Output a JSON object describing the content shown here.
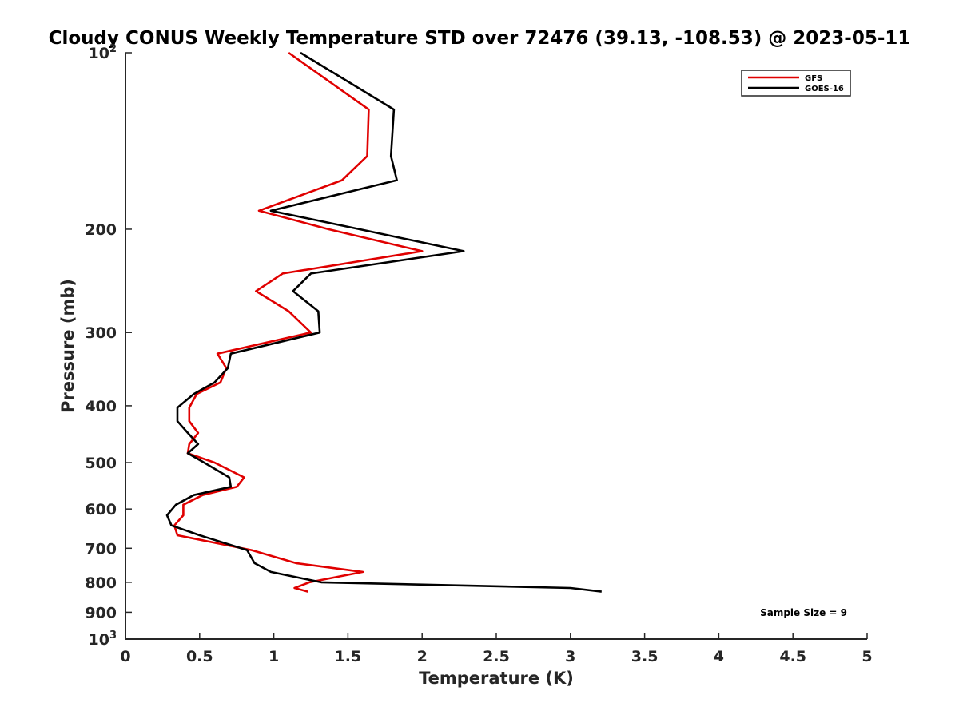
{
  "chart_data": {
    "type": "line",
    "title": "Cloudy CONUS Weekly Temperature STD over 72476 (39.13, -108.53) @ 2023-05-11",
    "xlabel": "Temperature (K)",
    "ylabel": "Pressure (mb)",
    "xlim": [
      0,
      5
    ],
    "ylim": [
      100,
      1000
    ],
    "yscale": "log",
    "y_reversed": true,
    "x_ticks": [
      0,
      0.5,
      1,
      1.5,
      2,
      2.5,
      3,
      3.5,
      4,
      4.5,
      5
    ],
    "x_tick_labels": [
      "0",
      "0.5",
      "1",
      "1.5",
      "2",
      "2.5",
      "3",
      "3.5",
      "4",
      "4.5",
      "5"
    ],
    "y_ticks": [
      {
        "value": 100,
        "base": "10",
        "exp": "2"
      },
      {
        "value": 200,
        "label": "200"
      },
      {
        "value": 300,
        "label": "300"
      },
      {
        "value": 400,
        "label": "400"
      },
      {
        "value": 500,
        "label": "500"
      },
      {
        "value": 600,
        "label": "600"
      },
      {
        "value": 700,
        "label": "700"
      },
      {
        "value": 800,
        "label": "800"
      },
      {
        "value": 900,
        "label": "900"
      },
      {
        "value": 1000,
        "base": "10",
        "exp": "3"
      }
    ],
    "legend_position": "top-right",
    "annotation": "Sample Size = 9",
    "series": [
      {
        "name": "GFS",
        "color": "#e00000",
        "points": [
          [
            1.1,
            100
          ],
          [
            1.64,
            125
          ],
          [
            1.63,
            150
          ],
          [
            1.46,
            165
          ],
          [
            0.9,
            186
          ],
          [
            1.37,
            200
          ],
          [
            2.0,
            218
          ],
          [
            1.06,
            238
          ],
          [
            0.88,
            255
          ],
          [
            1.1,
            276
          ],
          [
            1.25,
            300
          ],
          [
            0.62,
            326
          ],
          [
            0.68,
            345
          ],
          [
            0.64,
            365
          ],
          [
            0.48,
            382
          ],
          [
            0.43,
            403
          ],
          [
            0.43,
            425
          ],
          [
            0.49,
            445
          ],
          [
            0.43,
            465
          ],
          [
            0.42,
            482
          ],
          [
            0.6,
            500
          ],
          [
            0.8,
            530
          ],
          [
            0.75,
            550
          ],
          [
            0.52,
            568
          ],
          [
            0.39,
            590
          ],
          [
            0.39,
            615
          ],
          [
            0.33,
            640
          ],
          [
            0.35,
            665
          ],
          [
            0.85,
            705
          ],
          [
            1.15,
            742
          ],
          [
            1.6,
            768
          ],
          [
            1.24,
            800
          ],
          [
            1.14,
            818
          ],
          [
            1.23,
            830
          ]
        ]
      },
      {
        "name": "GOES-16",
        "color": "#000000",
        "points": [
          [
            1.18,
            100
          ],
          [
            1.81,
            125
          ],
          [
            1.79,
            150
          ],
          [
            1.83,
            165
          ],
          [
            0.98,
            186
          ],
          [
            1.58,
            200
          ],
          [
            2.28,
            218
          ],
          [
            1.25,
            238
          ],
          [
            1.13,
            255
          ],
          [
            1.3,
            276
          ],
          [
            1.31,
            300
          ],
          [
            0.71,
            326
          ],
          [
            0.69,
            345
          ],
          [
            0.6,
            365
          ],
          [
            0.46,
            382
          ],
          [
            0.35,
            403
          ],
          [
            0.35,
            425
          ],
          [
            0.42,
            445
          ],
          [
            0.49,
            465
          ],
          [
            0.42,
            482
          ],
          [
            0.53,
            500
          ],
          [
            0.7,
            530
          ],
          [
            0.71,
            550
          ],
          [
            0.46,
            568
          ],
          [
            0.34,
            590
          ],
          [
            0.28,
            615
          ],
          [
            0.31,
            640
          ],
          [
            0.5,
            665
          ],
          [
            0.82,
            705
          ],
          [
            0.87,
            742
          ],
          [
            0.98,
            768
          ],
          [
            1.32,
            800
          ],
          [
            3.0,
            818
          ],
          [
            3.21,
            830
          ]
        ]
      }
    ]
  }
}
